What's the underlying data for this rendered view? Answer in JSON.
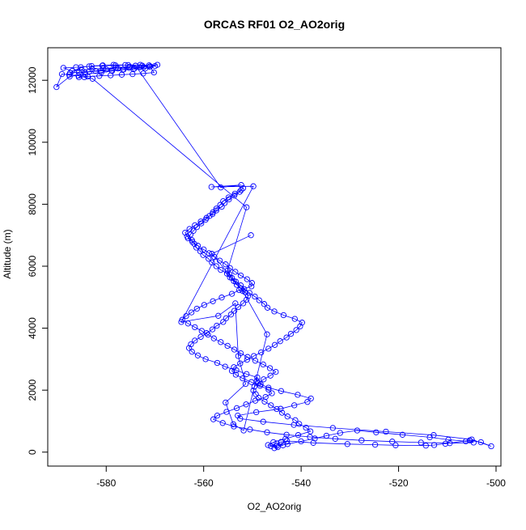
{
  "chart_data": {
    "type": "line",
    "title": "ORCAS RF01 O2_AO2orig",
    "xlabel": "O2_AO2orig",
    "ylabel": "Altitude (m)",
    "xlim": [
      -592,
      -499
    ],
    "ylim": [
      -450,
      13050
    ],
    "xticks": [
      -580,
      -560,
      -540,
      -520,
      -500
    ],
    "yticks": [
      0,
      2000,
      4000,
      6000,
      8000,
      10000,
      12000
    ],
    "grid": false,
    "series_color": "#0000ff",
    "marker": "open-circle",
    "series": [
      {
        "x": [
          -545.5,
          -544.8,
          -546.2,
          -543.7,
          -545.0,
          -544.1,
          -542.9,
          -537.5,
          -530.5,
          -524.8,
          -520.6,
          -514.4,
          -512.7,
          -510.4,
          -505.4,
          -503.1,
          -501.0,
          -505.0,
          -512.8,
          -522.6,
          -533.5,
          -541.5,
          -547.8,
          -552.5,
          -553.0,
          -549.2,
          -544.2,
          -541.4,
          -538.7,
          -538.0,
          -540.7,
          -544.1,
          -546.7,
          -548.3,
          -549.1,
          -549.0,
          -551.2,
          -553.3,
          -555.6,
          -557.2,
          -559.6,
          -561.2,
          -562.4,
          -563.0,
          -562.6,
          -561.8,
          -560.6,
          -559.4,
          -558.2,
          -557.3,
          -556.0,
          -555.4,
          -554.4,
          -553.7,
          -552.9,
          -551.9,
          -551.2,
          -550.9,
          -551.5,
          -552.3,
          -553.2,
          -553.8,
          -554.6,
          -555.2,
          -556.5,
          -557.4,
          -558.3,
          -559.0,
          -560.1,
          -560.7,
          -561.5,
          -561.9,
          -562.4,
          -563.4,
          -563.8,
          -562.9,
          -561.8,
          -560.6,
          -559.4,
          -558.2,
          -557.4,
          -556.3,
          -555.7,
          -554.8,
          -553.7,
          -552.6,
          -551.9,
          -552.3,
          -553.6,
          -554.9,
          -556.0,
          -556.6,
          -557.4,
          -558.1,
          -558.8,
          -559.6,
          -560.5,
          -561.4,
          -562.1,
          -562.7,
          -563.2,
          -562.3,
          -561.2,
          -560.0,
          -558.9,
          -557.8,
          -556.7,
          -555.5,
          -554.6,
          -553.5,
          -552.4,
          -551.1,
          -550.1,
          -550.2,
          -552.7,
          -554.2,
          -556.3,
          -558.1,
          -559.9,
          -561.4,
          -562.5,
          -563.6,
          -564.4,
          -563.2,
          -561.8,
          -560.4,
          -559.1,
          -557.9,
          -556.5,
          -555.1,
          -553.7,
          -552.4,
          -551.0,
          -549.4,
          -547.8,
          -546.4,
          -545.2,
          -546.3,
          -547.7,
          -548.8,
          -549.6,
          -549.8,
          -549.3,
          -548.7,
          -547.5,
          -546.2,
          -545.0,
          -543.9,
          -542.8,
          -541.2,
          -540.4,
          -539.0,
          -538.1,
          -540.6,
          -543.2,
          -545.7,
          -546.8,
          -545.0,
          -542.8,
          -540.0,
          -537.2,
          -534.8,
          -532.0,
          -528.5,
          -524.6,
          -519.2,
          -513.6,
          -509.8,
          -506.2,
          -504.6,
          -509.5,
          -515.4,
          -521.3,
          -527.6,
          -533.0,
          -538.2,
          -543.0,
          -547.0,
          -550.5,
          -553.8,
          -556.1,
          -558.0,
          -557.2,
          -555.3,
          -553.2,
          -551.3,
          -549.4,
          -547.3,
          -546.0,
          -546.7,
          -548.4,
          -550.2,
          -552.0,
          -553.4,
          -554.2,
          -553.8,
          -552.5,
          -551.1,
          -549.7,
          -548.2,
          -546.7,
          -545.4,
          -544.3,
          -543.0,
          -542.1,
          -541.0,
          -540.2,
          -539.8,
          -541.3,
          -543.6,
          -545.5,
          -546.9,
          -547.6,
          -548.6,
          -549.5,
          -550.6,
          -551.7,
          -552.4,
          -553.4,
          -554.2,
          -554.7,
          -555.1,
          -551.2,
          -582.8,
          -584.5,
          -585.7,
          -587.6,
          -589.1,
          -590.2,
          -587.5,
          -584.3,
          -581.0,
          -578.8,
          -576.4,
          -574.2,
          -572.3,
          -571.0,
          -569.5,
          -572.6,
          -575.2,
          -578.0,
          -580.6,
          -582.9,
          -585.0,
          -587.0,
          -588.8,
          -586.2,
          -583.5,
          -580.8,
          -578.1,
          -575.5,
          -573.0,
          -571.2,
          -570.2,
          -572.4,
          -574.6,
          -576.8,
          -579.1,
          -581.4,
          -583.8,
          -585.6,
          -584.4,
          -582.2,
          -580.0,
          -577.6,
          -575.3,
          -573.1,
          -571.1,
          -570.0,
          -572.0,
          -574.4,
          -576.6,
          -578.9,
          -581.1,
          -583.5,
          -585.6,
          -587.4,
          -585.2,
          -583.0,
          -580.7,
          -578.5,
          -576.1,
          -574.0,
          -556.5,
          -552.3,
          -558.4,
          -549.8,
          -564.6,
          -557.0,
          -553.5,
          -552.9,
          -551.4,
          -555.5,
          -553.9,
          -551.8,
          -547.0,
          -552.0,
          -558.3,
          -550.3
        ],
        "y": [
          130,
          160,
          190,
          220,
          280,
          330,
          360,
          300,
          260,
          240,
          220,
          210,
          230,
          270,
          380,
          320,
          190,
          410,
          550,
          660,
          780,
          880,
          980,
          1080,
          1180,
          1290,
          1400,
          1510,
          1620,
          1730,
          1850,
          1970,
          2080,
          2190,
          2300,
          2410,
          2520,
          2640,
          2760,
          2880,
          3000,
          3120,
          3240,
          3360,
          3480,
          3600,
          3720,
          3840,
          3960,
          4080,
          4200,
          4320,
          4440,
          4560,
          4680,
          4800,
          4920,
          5040,
          5160,
          5280,
          5400,
          5520,
          5640,
          5760,
          5880,
          6000,
          6120,
          6240,
          6360,
          6480,
          6600,
          6720,
          6840,
          6960,
          7080,
          7200,
          7320,
          7440,
          7560,
          7680,
          7800,
          7920,
          8040,
          8160,
          8280,
          8400,
          8520,
          8460,
          8340,
          8220,
          8100,
          7980,
          7860,
          7740,
          7620,
          7500,
          7380,
          7260,
          7140,
          7020,
          6900,
          6780,
          6660,
          6540,
          6420,
          6300,
          6180,
          6060,
          5940,
          5820,
          5700,
          5580,
          5460,
          5350,
          5230,
          5110,
          4990,
          4870,
          4750,
          4630,
          4510,
          4390,
          4270,
          4150,
          4030,
          3910,
          3790,
          3670,
          3550,
          3430,
          3310,
          3190,
          3070,
          2950,
          2830,
          2710,
          2590,
          2470,
          2350,
          2230,
          2110,
          1990,
          1870,
          1750,
          1630,
          1510,
          1390,
          1270,
          1150,
          1030,
          910,
          790,
          670,
          550,
          430,
          320,
          230,
          200,
          260,
          350,
          440,
          530,
          620,
          700,
          640,
          560,
          480,
          400,
          350,
          310,
          290,
          310,
          340,
          380,
          430,
          490,
          560,
          640,
          730,
          830,
          940,
          1060,
          1180,
          1300,
          1420,
          1540,
          1660,
          1780,
          1900,
          2020,
          2140,
          2260,
          2380,
          2500,
          2620,
          2740,
          2860,
          2980,
          3100,
          3220,
          3340,
          3460,
          3580,
          3700,
          3820,
          3940,
          4060,
          4180,
          4300,
          4420,
          4540,
          4660,
          4780,
          4900,
          5020,
          5140,
          5260,
          5380,
          5500,
          5620,
          5740,
          5860,
          7900,
          12050,
          12100,
          12150,
          12180,
          12200,
          11780,
          12120,
          12200,
          12250,
          12300,
          12350,
          12380,
          12420,
          12450,
          12500,
          12470,
          12440,
          12410,
          12380,
          12360,
          12330,
          12300,
          12400,
          12420,
          12450,
          12470,
          12480,
          12490,
          12500,
          12480,
          12250,
          12220,
          12200,
          12180,
          12160,
          12140,
          12120,
          12100,
          12250,
          12300,
          12350,
          12380,
          12400,
          12420,
          12440,
          12460,
          12380,
          12360,
          12340,
          12320,
          12300,
          12280,
          12260,
          12240,
          12420,
          12460,
          12480,
          12500,
          12490,
          12470,
          8540,
          8620,
          8560,
          8580,
          4200,
          4400,
          4800,
          3100,
          2200,
          1600,
          900,
          700,
          3800,
          5200,
          6400,
          7000
        ]
      }
    ]
  }
}
